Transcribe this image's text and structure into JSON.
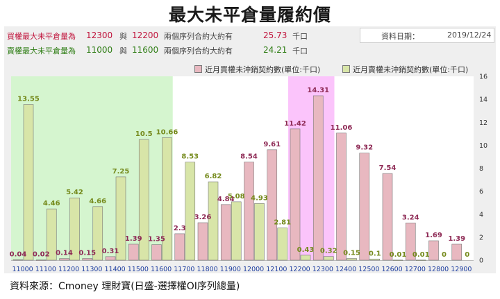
{
  "title": "最大未平倉量履約價",
  "info": {
    "call_row": {
      "label": "買權最大未平倉量為",
      "strike1": "12300",
      "conj": "與",
      "strike2": "12200",
      "desc": "兩個序列合約大約有",
      "amount": "25.73",
      "unit": "千口"
    },
    "put_row": {
      "label": "賣權最大未平倉量為",
      "strike1": "11000",
      "conj": "與",
      "strike2": "11600",
      "desc": "兩個序列合約大約有",
      "amount": "24.21",
      "unit": "千口"
    },
    "date_label": "資料日期：",
    "date_value": "2019/12/24"
  },
  "legend": {
    "call": "近月買權未沖銷契約數(單位:千口)",
    "put": "近月賣權未沖銷契約數(單位:千口)"
  },
  "source": "資料來源：Cmoney 理財寶(日盛-選擇權OI序列總量)",
  "colors": {
    "call_fill": "#e8b8c0",
    "call_label": "#8e2a55",
    "put_fill": "#d8e5a8",
    "put_label": "#758a1c",
    "green_zone": "#d5f5cf",
    "pink_zone": "#fbc4fb",
    "tick_blue": "#1f3fa0"
  },
  "chart_data": {
    "type": "bar",
    "categories": [
      "11000",
      "11100",
      "11200",
      "11300",
      "11400",
      "11500",
      "11600",
      "11700",
      "11800",
      "11900",
      "12000",
      "12100",
      "12200",
      "12300",
      "12400",
      "12500",
      "12600",
      "12700",
      "12800",
      "12900"
    ],
    "series": [
      {
        "name": "近月買權未沖銷契約數(單位:千口)",
        "values": [
          0.04,
          0.02,
          0.14,
          0.15,
          0.31,
          1.39,
          1.35,
          2.3,
          3.26,
          4.84,
          8.54,
          9.61,
          11.42,
          14.31,
          11.06,
          9.32,
          7.54,
          3.24,
          1.69,
          1.39
        ]
      },
      {
        "name": "近月賣權未沖銷契約數(單位:千口)",
        "values": [
          13.55,
          4.46,
          5.42,
          4.66,
          7.25,
          10.5,
          10.66,
          8.53,
          6.82,
          5.08,
          4.93,
          2.81,
          0.43,
          0.32,
          0.15,
          0.1,
          0.01,
          0.01,
          0,
          0
        ]
      }
    ],
    "call_labels": [
      "0.04",
      "0.02",
      "0.14",
      "0.15",
      "0.31",
      "1.39",
      "1.35",
      "2.3",
      "3.26",
      "4.84",
      "8.54",
      "9.61",
      "11.42",
      "14.31",
      "11.06",
      "9.32",
      "7.54",
      "3.24",
      "1.69",
      "1.39"
    ],
    "put_labels": [
      "13.55",
      "4.46",
      "5.42",
      "4.66",
      "7.25",
      "10.5",
      "10.66",
      "8.53",
      "6.82",
      "5.08",
      "4.93",
      "2.81",
      "0.43",
      "0.32",
      "0.15",
      "0.1",
      "0.01",
      "0.01",
      "0",
      "0"
    ],
    "ylim": [
      0,
      16
    ],
    "yticks": [
      "0",
      "2",
      "4",
      "6",
      "8",
      "10",
      "12",
      "14",
      "16"
    ],
    "y_axis_side": "right",
    "highlight_green_range": [
      "11000",
      "11600"
    ],
    "highlight_pink_range": [
      "12200",
      "12300"
    ],
    "grid": false
  }
}
